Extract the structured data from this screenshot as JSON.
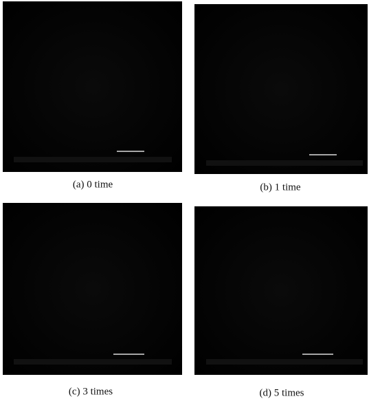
{
  "figure": {
    "panels": [
      {
        "caption": "(a) 0 time"
      },
      {
        "caption": "(b) 1 time"
      },
      {
        "caption": "(c) 3 times"
      },
      {
        "caption": "(d) 5 times"
      }
    ]
  }
}
